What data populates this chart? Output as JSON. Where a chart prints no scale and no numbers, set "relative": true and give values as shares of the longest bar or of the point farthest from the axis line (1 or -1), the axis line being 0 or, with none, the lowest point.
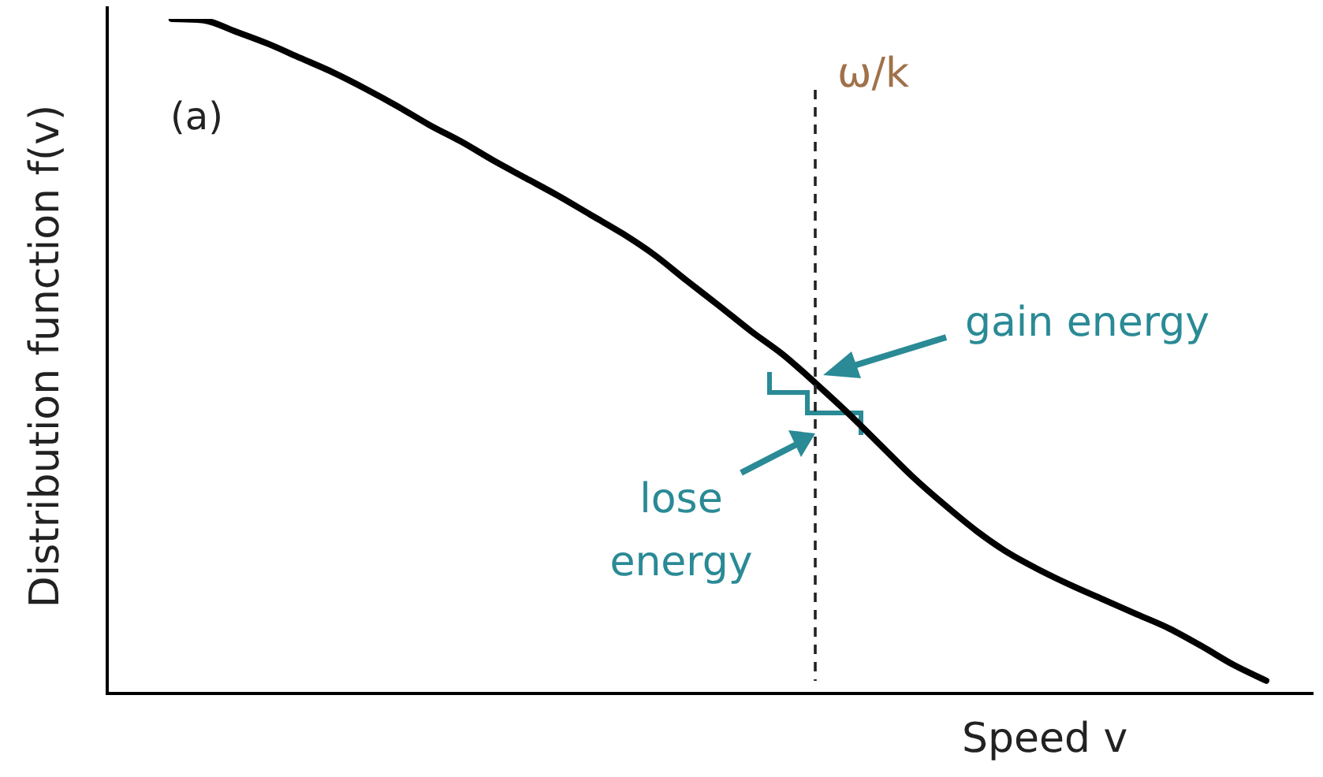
{
  "chart_data": {
    "type": "line",
    "relative": true,
    "xlabel": "Speed v",
    "ylabel": "Distribution function f(v)",
    "categories": [
      null,
      null,
      null,
      null,
      null,
      null,
      null,
      null,
      null,
      null,
      null,
      null,
      null,
      null,
      null,
      null,
      null,
      null,
      null,
      null,
      null,
      null,
      null,
      null,
      null,
      null,
      null,
      null,
      null,
      null,
      null,
      null,
      null,
      null,
      null,
      null,
      null
    ],
    "series": [
      {
        "color": "#000000",
        "values": [
          null,
          null,
          1.0,
          0.998,
          0.981,
          0.963,
          0.942,
          0.921,
          0.897,
          0.871,
          0.843,
          0.818,
          0.79,
          0.764,
          0.738,
          0.71,
          0.682,
          0.65,
          0.612,
          0.575,
          0.537,
          0.502,
          0.46,
          0.416,
          0.369,
          0.322,
          0.28,
          0.241,
          0.208,
          0.182,
          0.159,
          0.138,
          0.117,
          0.096,
          0.07,
          0.042,
          0.019
        ]
      }
    ],
    "annotations": [
      "(a)",
      "ω/k",
      "gain energy",
      "lose energy"
    ]
  }
}
